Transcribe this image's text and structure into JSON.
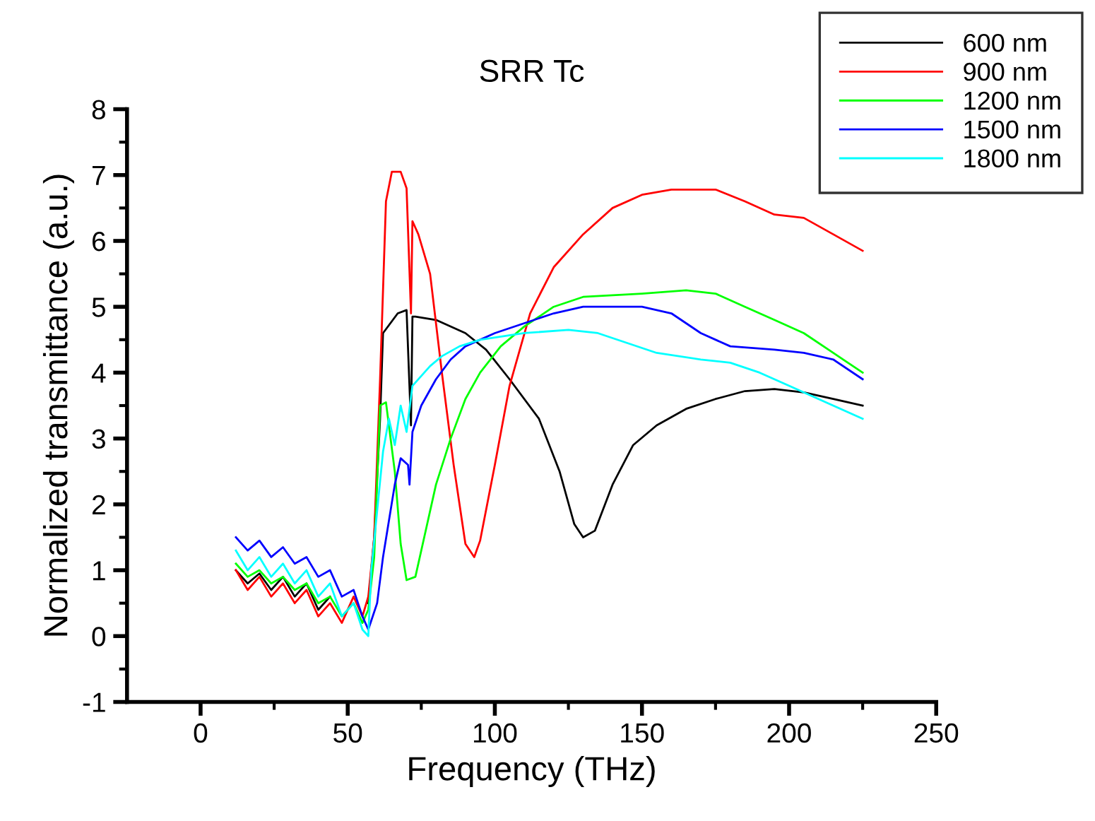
{
  "chart_data": {
    "type": "line",
    "title": "SRR Tc",
    "xlabel": "Frequency (THz)",
    "ylabel": "Normalized transmittance (a.u.)",
    "xlim": [
      -25,
      250
    ],
    "ylim": [
      -1,
      8
    ],
    "xticks": [
      0,
      {
        "value": 25,
        "label": null
      },
      50,
      {
        "value": 75,
        "label": null
      },
      100,
      {
        "value": 125,
        "label": null
      },
      150,
      {
        "value": 175,
        "label": null
      },
      200,
      {
        "value": 225,
        "label": null
      },
      250
    ],
    "yticks": [
      -1,
      {
        "value": -0.5,
        "label": null
      },
      0,
      {
        "value": 0.5,
        "label": null
      },
      1,
      {
        "value": 1.5,
        "label": null
      },
      2,
      {
        "value": 2.5,
        "label": null
      },
      3,
      {
        "value": 3.5,
        "label": null
      },
      4,
      {
        "value": 4.5,
        "label": null
      },
      5,
      {
        "value": 5.5,
        "label": null
      },
      6,
      {
        "value": 6.5,
        "label": null
      },
      7,
      {
        "value": 7.5,
        "label": null
      },
      8
    ],
    "legend": "top right",
    "grid": false,
    "line_style": "solid",
    "marker": "none",
    "series": [
      {
        "name": "600 nm",
        "color": "#000000",
        "x": [
          12,
          16,
          20,
          24,
          28,
          32,
          36,
          40,
          44,
          48,
          52,
          55,
          57,
          59,
          61,
          62,
          67,
          70,
          71.5,
          72,
          73,
          80,
          90,
          97,
          105,
          115,
          122,
          127,
          130,
          134,
          140,
          147,
          155,
          165,
          175,
          185,
          195,
          205,
          215,
          225
        ],
        "values": [
          1.0,
          0.8,
          0.95,
          0.7,
          0.9,
          0.6,
          0.8,
          0.4,
          0.6,
          null,
          null,
          null,
          0.5,
          1.5,
          3.3,
          4.6,
          4.9,
          4.95,
          3.2,
          4.85,
          4.85,
          4.8,
          4.6,
          4.35,
          3.9,
          3.3,
          2.5,
          1.7,
          1.5,
          1.6,
          2.3,
          2.9,
          3.2,
          3.45,
          3.6,
          3.72,
          3.75,
          3.7,
          3.6,
          3.5
        ]
      },
      {
        "name": "900 nm",
        "color": "#ff0000",
        "x": [
          12,
          16,
          20,
          24,
          28,
          32,
          36,
          40,
          44,
          48,
          52,
          55,
          57,
          59,
          61,
          63,
          65,
          68,
          70,
          71.5,
          72,
          74,
          78,
          82,
          86,
          90,
          93,
          95,
          100,
          105,
          112,
          120,
          130,
          140,
          150,
          160,
          175,
          185,
          195,
          205,
          215,
          225
        ],
        "values": [
          1.0,
          0.7,
          0.9,
          0.6,
          0.8,
          0.5,
          0.7,
          0.3,
          0.5,
          0.2,
          0.6,
          0.3,
          0.6,
          1.5,
          3.9,
          6.6,
          7.05,
          7.05,
          6.8,
          4.9,
          6.3,
          6.1,
          5.5,
          4.0,
          2.6,
          1.4,
          1.2,
          1.45,
          2.6,
          3.8,
          4.9,
          5.6,
          6.1,
          6.5,
          6.7,
          6.78,
          6.78,
          6.6,
          6.4,
          6.35,
          6.1,
          5.85
        ]
      },
      {
        "name": "1200 nm",
        "color": "#00ff00",
        "x": [
          12,
          16,
          20,
          24,
          28,
          32,
          36,
          40,
          44,
          48,
          52,
          55,
          57,
          59,
          61,
          63,
          66,
          68,
          70,
          73,
          76,
          80,
          85,
          90,
          95,
          102,
          110,
          120,
          130,
          150,
          165,
          175,
          185,
          195,
          205,
          215,
          225
        ],
        "values": [
          1.1,
          0.9,
          1.0,
          0.8,
          0.9,
          0.7,
          0.8,
          0.5,
          0.6,
          0.3,
          0.5,
          0.2,
          0.4,
          1.2,
          3.5,
          3.55,
          2.5,
          1.4,
          0.85,
          0.9,
          1.5,
          2.3,
          3.0,
          3.6,
          4.0,
          4.4,
          4.7,
          5.0,
          5.15,
          5.2,
          5.25,
          5.2,
          5.0,
          4.8,
          4.6,
          4.3,
          4.0
        ]
      },
      {
        "name": "1500 nm",
        "color": "#0000ff",
        "x": [
          12,
          16,
          20,
          24,
          28,
          32,
          36,
          40,
          44,
          48,
          52,
          55,
          57,
          60,
          62,
          66,
          68,
          70.5,
          71,
          72,
          75,
          80,
          85,
          90,
          100,
          110,
          120,
          130,
          150,
          160,
          170,
          180,
          195,
          205,
          215,
          225
        ],
        "values": [
          1.5,
          1.3,
          1.45,
          1.2,
          1.35,
          1.1,
          1.2,
          0.9,
          1.0,
          0.6,
          0.7,
          0.3,
          0.1,
          0.5,
          1.2,
          2.3,
          2.7,
          2.6,
          2.3,
          3.1,
          3.5,
          3.9,
          4.2,
          4.4,
          4.6,
          4.75,
          4.9,
          5.0,
          5.0,
          4.9,
          4.6,
          4.4,
          4.35,
          4.3,
          4.2,
          3.9
        ]
      },
      {
        "name": "1800 nm",
        "color": "#00ffff",
        "x": [
          12,
          16,
          20,
          24,
          28,
          32,
          36,
          40,
          44,
          48,
          52,
          55,
          57,
          58,
          62,
          64,
          66,
          68,
          70,
          72,
          78,
          82,
          88,
          95,
          110,
          125,
          135,
          145,
          155,
          170,
          180,
          190,
          200,
          210,
          225
        ],
        "values": [
          1.3,
          1.0,
          1.2,
          0.9,
          1.1,
          0.8,
          1.0,
          0.6,
          0.8,
          0.3,
          0.5,
          0.1,
          0.0,
          1.0,
          2.8,
          3.3,
          2.9,
          3.5,
          3.1,
          3.8,
          4.1,
          4.25,
          4.4,
          4.5,
          4.6,
          4.65,
          4.6,
          4.45,
          4.3,
          4.2,
          4.15,
          4.0,
          3.8,
          3.6,
          3.3
        ]
      }
    ]
  }
}
